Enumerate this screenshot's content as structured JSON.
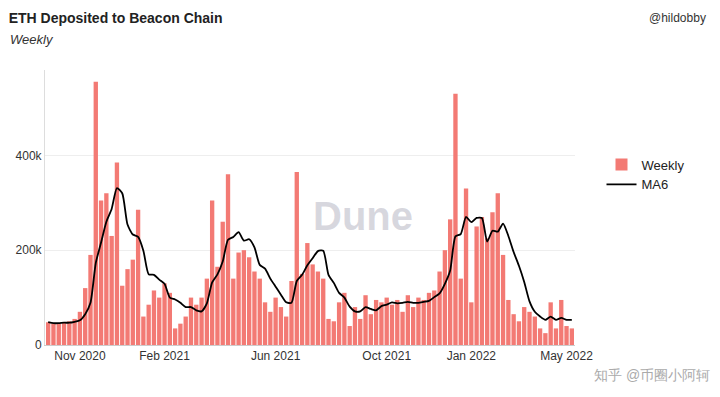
{
  "chart_data": {
    "type": "bar",
    "title": "ETH Deposited to Beacon Chain",
    "subtitle": "Weekly",
    "annotations": [
      "@hildobby",
      "Dune",
      "知乎 @币圈小阿轲"
    ],
    "categories": [
      null,
      null,
      null,
      null,
      null,
      null,
      "Nov 2020",
      null,
      null,
      null,
      null,
      null,
      null,
      null,
      null,
      null,
      null,
      null,
      null,
      null,
      null,
      null,
      "Feb 2021",
      null,
      null,
      null,
      null,
      null,
      null,
      null,
      null,
      null,
      null,
      null,
      null,
      null,
      null,
      null,
      null,
      null,
      null,
      null,
      null,
      "Jun 2021",
      null,
      null,
      null,
      null,
      null,
      null,
      null,
      null,
      null,
      null,
      null,
      null,
      null,
      null,
      null,
      null,
      null,
      null,
      null,
      null,
      "Oct 2021",
      null,
      null,
      null,
      null,
      null,
      null,
      null,
      null,
      null,
      null,
      null,
      null,
      null,
      null,
      null,
      "Jan 2022",
      null,
      null,
      null,
      null,
      null,
      null,
      null,
      null,
      null,
      null,
      null,
      null,
      null,
      null,
      null,
      null,
      null,
      "May 2022",
      null
    ],
    "series": [
      {
        "name": "Weekly",
        "type": "bar",
        "color": "#f37a74",
        "values": [
          48000,
          45000,
          45000,
          48000,
          50000,
          55000,
          70000,
          120000,
          190000,
          555000,
          305000,
          320000,
          230000,
          385000,
          125000,
          160000,
          180000,
          285000,
          60000,
          85000,
          115000,
          100000,
          130000,
          110000,
          35000,
          45000,
          60000,
          100000,
          85000,
          100000,
          140000,
          305000,
          165000,
          260000,
          360000,
          140000,
          195000,
          200000,
          185000,
          155000,
          140000,
          90000,
          70000,
          100000,
          80000,
          60000,
          135000,
          365000,
          150000,
          215000,
          170000,
          155000,
          140000,
          55000,
          50000,
          90000,
          110000,
          40000,
          80000,
          55000,
          105000,
          65000,
          95000,
          90000,
          100000,
          85000,
          95000,
          70000,
          105000,
          80000,
          100000,
          95000,
          110000,
          115000,
          155000,
          200000,
          265000,
          530000,
          140000,
          330000,
          90000,
          250000,
          270000,
          225000,
          280000,
          320000,
          190000,
          95000,
          65000,
          50000,
          80000,
          70000,
          60000,
          35000,
          25000,
          90000,
          35000,
          95000,
          40000,
          35000
        ]
      },
      {
        "name": "MA6",
        "type": "line",
        "color": "#000000",
        "line_style": "solid",
        "values": [
          48000,
          46000,
          46000,
          47000,
          47000,
          49000,
          52000,
          65000,
          89000,
          173000,
          216000,
          260000,
          287000,
          331000,
          320000,
          254000,
          233000,
          228000,
          199000,
          149000,
          148000,
          138000,
          129000,
          100000,
          96000,
          89000,
          80000,
          80000,
          73000,
          71000,
          88000,
          132000,
          149000,
          176000,
          222000,
          228000,
          238000,
          220000,
          223000,
          206000,
          169000,
          161000,
          140000,
          123000,
          106000,
          90000,
          89000,
          135000,
          148000,
          168000,
          183000,
          198000,
          199000,
          148000,
          131000,
          110000,
          100000,
          81000,
          71000,
          71000,
          80000,
          76000,
          73000,
          82000,
          85000,
          90000,
          88000,
          89000,
          91000,
          89000,
          89000,
          91000,
          93000,
          101000,
          109000,
          129000,
          157000,
          229000,
          234000,
          270000,
          259000,
          268000,
          268000,
          218000,
          241000,
          239000,
          256000,
          230000,
          196000,
          167000,
          133000,
          92000,
          70000,
          60000,
          53000,
          60000,
          53000,
          57000,
          53000,
          53000
        ]
      }
    ],
    "ylim": [
      0,
      580000
    ],
    "yticks": [
      0,
      {
        "value": 200000,
        "label": "200k"
      },
      {
        "value": 400000,
        "label": "400k"
      }
    ],
    "grid": true,
    "legend": "right"
  }
}
